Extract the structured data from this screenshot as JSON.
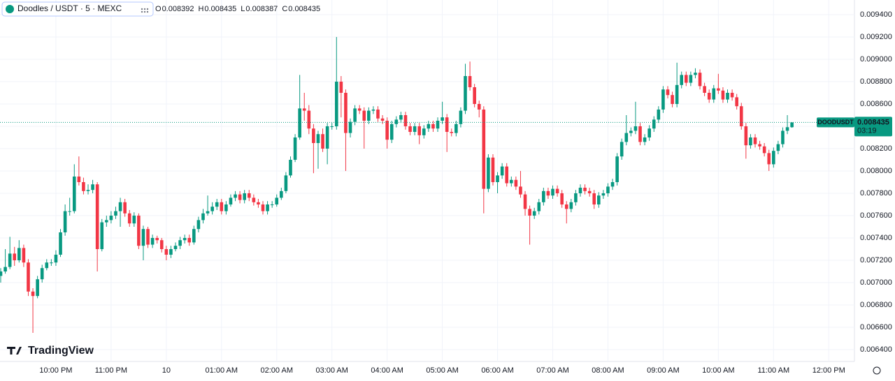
{
  "chart_data": {
    "type": "candlestick",
    "header": {
      "symbol": "Doodles / USDT · 5 · MEXC",
      "ohlc": [
        {
          "label": "O",
          "value": 0.008392
        },
        {
          "label": "H",
          "value": 0.008435
        },
        {
          "label": "L",
          "value": 0.008387
        },
        {
          "label": "C",
          "value": 0.008435
        }
      ]
    },
    "watermark": "TradingView",
    "price_tag": {
      "symbol": "DOODUSDT",
      "price": 0.008435,
      "countdown": "03:19"
    },
    "up_color": "#089981",
    "down_color": "#f23645",
    "grid": true,
    "open": [
      0.00706,
      0.0071,
      0.00714,
      0.00726,
      0.0072,
      0.00731,
      0.00718,
      0.00692,
      0.00688,
      0.00703,
      0.00713,
      0.00718,
      0.00718,
      0.00725,
      0.00745,
      0.00764,
      0.00764,
      0.00795,
      0.0079,
      0.00782,
      0.00783,
      0.00788,
      0.0073,
      0.00754,
      0.00756,
      0.0076,
      0.00764,
      0.00772,
      0.00762,
      0.00753,
      0.0076,
      0.00733,
      0.00748,
      0.00734,
      0.0074,
      0.00738,
      0.0073,
      0.00725,
      0.0073,
      0.00733,
      0.00738,
      0.0074,
      0.00736,
      0.00748,
      0.00756,
      0.00762,
      0.00764,
      0.00768,
      0.00772,
      0.00764,
      0.0077,
      0.00776,
      0.00779,
      0.00774,
      0.0078,
      0.00776,
      0.00772,
      0.0077,
      0.00764,
      0.0077,
      0.0077,
      0.00776,
      0.00782,
      0.00796,
      0.0081,
      0.0083,
      0.00856,
      0.00854,
      0.00838,
      0.00825,
      0.00833,
      0.0082,
      0.0084,
      0.0084,
      0.0088,
      0.0087,
      0.00834,
      0.00844,
      0.00856,
      0.00854,
      0.00845,
      0.00854,
      0.00855,
      0.00847,
      0.00845,
      0.00828,
      0.00842,
      0.00846,
      0.0085,
      0.0084,
      0.00835,
      0.0084,
      0.00832,
      0.00838,
      0.00842,
      0.00838,
      0.00845,
      0.00848,
      0.00835,
      0.00834,
      0.00842,
      0.00854,
      0.00885,
      0.00875,
      0.0086,
      0.00855,
      0.00784,
      0.00812,
      0.0079,
      0.00796,
      0.00804,
      0.00789,
      0.00792,
      0.00786,
      0.00779,
      0.00766,
      0.0076,
      0.00764,
      0.00772,
      0.00782,
      0.00778,
      0.00784,
      0.0078,
      0.0077,
      0.00766,
      0.00772,
      0.0078,
      0.00785,
      0.00782,
      0.0078,
      0.0077,
      0.00778,
      0.0078,
      0.00786,
      0.0079,
      0.00813,
      0.00826,
      0.00834,
      0.00836,
      0.0084,
      0.00826,
      0.0083,
      0.00838,
      0.00846,
      0.00855,
      0.00873,
      0.00868,
      0.0086,
      0.00877,
      0.00886,
      0.00879,
      0.00886,
      0.00888,
      0.00876,
      0.0087,
      0.00864,
      0.00874,
      0.00872,
      0.00864,
      0.0087,
      0.00866,
      0.00858,
      0.0084,
      0.00823,
      0.0083,
      0.00824,
      0.00822,
      0.00816,
      0.00806,
      0.00818,
      0.00824,
      0.00836,
      0.008392
    ],
    "high": [
      0.00713,
      0.0073,
      0.00741,
      0.00732,
      0.00738,
      0.00734,
      0.00721,
      0.00695,
      0.00706,
      0.00716,
      0.00721,
      0.00721,
      0.00729,
      0.00748,
      0.0077,
      0.00776,
      0.00806,
      0.00813,
      0.00794,
      0.00788,
      0.00792,
      0.0079,
      0.00757,
      0.0076,
      0.00764,
      0.00768,
      0.00776,
      0.00775,
      0.00765,
      0.00763,
      0.00762,
      0.00751,
      0.0075,
      0.00743,
      0.00742,
      0.0074,
      0.00733,
      0.00733,
      0.00736,
      0.00741,
      0.00743,
      0.00743,
      0.00751,
      0.00759,
      0.00766,
      0.00778,
      0.00772,
      0.00775,
      0.00775,
      0.00773,
      0.00779,
      0.00782,
      0.00782,
      0.00783,
      0.00783,
      0.00779,
      0.00775,
      0.00773,
      0.00773,
      0.00773,
      0.00779,
      0.00785,
      0.00799,
      0.00813,
      0.00833,
      0.00886,
      0.0087,
      0.00859,
      0.00842,
      0.00836,
      0.00838,
      0.00843,
      0.00843,
      0.0092,
      0.00885,
      0.00873,
      0.00847,
      0.00859,
      0.00859,
      0.00857,
      0.00857,
      0.00858,
      0.00858,
      0.0085,
      0.00848,
      0.00845,
      0.00849,
      0.00853,
      0.00853,
      0.00843,
      0.00843,
      0.00843,
      0.00841,
      0.00845,
      0.00845,
      0.00848,
      0.00862,
      0.00851,
      0.00838,
      0.00845,
      0.00857,
      0.00896,
      0.00898,
      0.00878,
      0.00863,
      0.00858,
      0.00815,
      0.00815,
      0.00799,
      0.00807,
      0.00807,
      0.00795,
      0.00795,
      0.008,
      0.00782,
      0.00769,
      0.00767,
      0.00775,
      0.00785,
      0.00785,
      0.00787,
      0.00787,
      0.00783,
      0.00773,
      0.00775,
      0.00783,
      0.00788,
      0.00788,
      0.00785,
      0.00783,
      0.00781,
      0.00783,
      0.00789,
      0.00793,
      0.00816,
      0.00829,
      0.0085,
      0.00839,
      0.00862,
      0.00843,
      0.00833,
      0.00841,
      0.00849,
      0.00858,
      0.00876,
      0.00876,
      0.00871,
      0.00897,
      0.00889,
      0.00889,
      0.00889,
      0.00892,
      0.00891,
      0.00879,
      0.00873,
      0.00877,
      0.00887,
      0.00875,
      0.00873,
      0.00873,
      0.00869,
      0.00861,
      0.00843,
      0.00833,
      0.00833,
      0.00827,
      0.00825,
      0.00819,
      0.00821,
      0.00827,
      0.00839,
      0.0085,
      0.008435
    ],
    "low": [
      0.007,
      0.00708,
      0.00712,
      0.00715,
      0.00718,
      0.00714,
      0.00688,
      0.00655,
      0.00686,
      0.007,
      0.00711,
      0.00715,
      0.00715,
      0.00723,
      0.00742,
      0.0076,
      0.00762,
      0.00787,
      0.00779,
      0.00779,
      0.0078,
      0.0071,
      0.00728,
      0.0075,
      0.00753,
      0.00757,
      0.0075,
      0.00759,
      0.0075,
      0.0075,
      0.0073,
      0.0072,
      0.00731,
      0.00731,
      0.00735,
      0.00727,
      0.0072,
      0.00722,
      0.00728,
      0.0073,
      0.00735,
      0.00733,
      0.00734,
      0.00745,
      0.00753,
      0.0076,
      0.00761,
      0.00765,
      0.00761,
      0.00761,
      0.00768,
      0.00773,
      0.00771,
      0.00771,
      0.00773,
      0.00769,
      0.00767,
      0.00761,
      0.00761,
      0.00767,
      0.00768,
      0.00774,
      0.0078,
      0.00794,
      0.00808,
      0.00828,
      0.00845,
      0.00833,
      0.00798,
      0.00802,
      0.00817,
      0.00806,
      0.00837,
      0.00837,
      0.00848,
      0.008,
      0.0083,
      0.00841,
      0.00851,
      0.0082,
      0.00842,
      0.00851,
      0.00844,
      0.00842,
      0.0082,
      0.00825,
      0.00839,
      0.00843,
      0.00837,
      0.00832,
      0.00832,
      0.00824,
      0.00829,
      0.00835,
      0.00835,
      0.00835,
      0.00842,
      0.00817,
      0.00831,
      0.00831,
      0.00839,
      0.00851,
      0.00872,
      0.00857,
      0.00848,
      0.00762,
      0.00781,
      0.00787,
      0.0078,
      0.00793,
      0.00786,
      0.00786,
      0.00783,
      0.00776,
      0.0076,
      0.00734,
      0.00757,
      0.00761,
      0.00769,
      0.00775,
      0.00775,
      0.00777,
      0.00767,
      0.00753,
      0.00763,
      0.00769,
      0.00777,
      0.00779,
      0.00777,
      0.00766,
      0.00767,
      0.00775,
      0.00777,
      0.00783,
      0.00787,
      0.0081,
      0.00823,
      0.00831,
      0.00833,
      0.00823,
      0.00823,
      0.00827,
      0.00835,
      0.00843,
      0.00852,
      0.00865,
      0.00857,
      0.00857,
      0.00874,
      0.00876,
      0.00876,
      0.00883,
      0.00873,
      0.00867,
      0.00861,
      0.00861,
      0.00869,
      0.00861,
      0.00861,
      0.00863,
      0.00855,
      0.00837,
      0.00811,
      0.0082,
      0.00821,
      0.00819,
      0.00813,
      0.008,
      0.00803,
      0.00815,
      0.00821,
      0.00833,
      0.008387
    ],
    "close": [
      0.0071,
      0.00714,
      0.00726,
      0.0072,
      0.00731,
      0.00718,
      0.00692,
      0.00688,
      0.00703,
      0.00713,
      0.00718,
      0.00718,
      0.00725,
      0.00745,
      0.00764,
      0.00764,
      0.00795,
      0.0079,
      0.00782,
      0.00783,
      0.00788,
      0.0073,
      0.00754,
      0.00756,
      0.0076,
      0.00764,
      0.00772,
      0.00762,
      0.00753,
      0.0076,
      0.00733,
      0.00748,
      0.00734,
      0.0074,
      0.00738,
      0.0073,
      0.00725,
      0.0073,
      0.00733,
      0.00738,
      0.0074,
      0.00736,
      0.00748,
      0.00756,
      0.00762,
      0.00764,
      0.00768,
      0.00772,
      0.00764,
      0.0077,
      0.00776,
      0.00779,
      0.00774,
      0.0078,
      0.00776,
      0.00772,
      0.0077,
      0.00764,
      0.0077,
      0.0077,
      0.00776,
      0.00782,
      0.00796,
      0.0081,
      0.0083,
      0.00856,
      0.00854,
      0.00838,
      0.00825,
      0.00833,
      0.0082,
      0.0084,
      0.0084,
      0.0088,
      0.0087,
      0.00834,
      0.00844,
      0.00856,
      0.00854,
      0.00845,
      0.00854,
      0.00855,
      0.00847,
      0.00845,
      0.00828,
      0.00842,
      0.00846,
      0.0085,
      0.0084,
      0.00835,
      0.0084,
      0.00832,
      0.00838,
      0.00842,
      0.00838,
      0.00845,
      0.00848,
      0.00835,
      0.00834,
      0.00842,
      0.00854,
      0.00885,
      0.00875,
      0.0086,
      0.00855,
      0.00784,
      0.00812,
      0.0079,
      0.00796,
      0.00804,
      0.00789,
      0.00792,
      0.00786,
      0.00779,
      0.00766,
      0.0076,
      0.00764,
      0.00772,
      0.00782,
      0.00778,
      0.00784,
      0.0078,
      0.0077,
      0.00766,
      0.00772,
      0.0078,
      0.00785,
      0.00782,
      0.0078,
      0.0077,
      0.00778,
      0.0078,
      0.00786,
      0.0079,
      0.00813,
      0.00826,
      0.00834,
      0.00836,
      0.0084,
      0.00826,
      0.0083,
      0.00838,
      0.00846,
      0.00855,
      0.00873,
      0.00868,
      0.0086,
      0.00877,
      0.00886,
      0.00879,
      0.00886,
      0.00888,
      0.00876,
      0.0087,
      0.00864,
      0.00874,
      0.00872,
      0.00864,
      0.0087,
      0.00866,
      0.00858,
      0.0084,
      0.00823,
      0.0083,
      0.00824,
      0.00822,
      0.00816,
      0.00806,
      0.00818,
      0.00824,
      0.00836,
      0.008392,
      0.008435
    ],
    "xlim": [
      0,
      183
    ],
    "xticks": [
      {
        "value": 12,
        "label": "10:00 PM"
      },
      {
        "value": 24,
        "label": "11:00 PM"
      },
      {
        "value": 36,
        "label": "10"
      },
      {
        "value": 48,
        "label": "01:00 AM"
      },
      {
        "value": 60,
        "label": "02:00 AM"
      },
      {
        "value": 72,
        "label": "03:00 AM"
      },
      {
        "value": 84,
        "label": "04:00 AM"
      },
      {
        "value": 96,
        "label": "05:00 AM"
      },
      {
        "value": 108,
        "label": "06:00 AM"
      },
      {
        "value": 120,
        "label": "07:00 AM"
      },
      {
        "value": 132,
        "label": "08:00 AM"
      },
      {
        "value": 144,
        "label": "09:00 AM"
      },
      {
        "value": 156,
        "label": "10:00 AM"
      },
      {
        "value": 168,
        "label": "11:00 AM"
      },
      {
        "value": 180,
        "label": "12:00 PM"
      }
    ],
    "ylim": [
      0.0064,
      0.0094
    ],
    "yticks": [
      {
        "value": 0.0064,
        "label": "0.006400"
      },
      {
        "value": 0.0066,
        "label": "0.006600"
      },
      {
        "value": 0.0068,
        "label": "0.006800"
      },
      {
        "value": 0.007,
        "label": "0.007000"
      },
      {
        "value": 0.0072,
        "label": "0.007200"
      },
      {
        "value": 0.0074,
        "label": "0.007400"
      },
      {
        "value": 0.0076,
        "label": "0.007600"
      },
      {
        "value": 0.0078,
        "label": "0.007800"
      },
      {
        "value": 0.008,
        "label": "0.008000"
      },
      {
        "value": 0.0082,
        "label": "0.008200"
      },
      {
        "value": 0.0084,
        "label": "0.008400"
      },
      {
        "value": 0.0086,
        "label": "0.008600"
      },
      {
        "value": 0.0088,
        "label": "0.008800"
      },
      {
        "value": 0.009,
        "label": "0.009000"
      },
      {
        "value": 0.0092,
        "label": "0.009200"
      },
      {
        "value": 0.0094,
        "label": "0.009400"
      }
    ]
  }
}
